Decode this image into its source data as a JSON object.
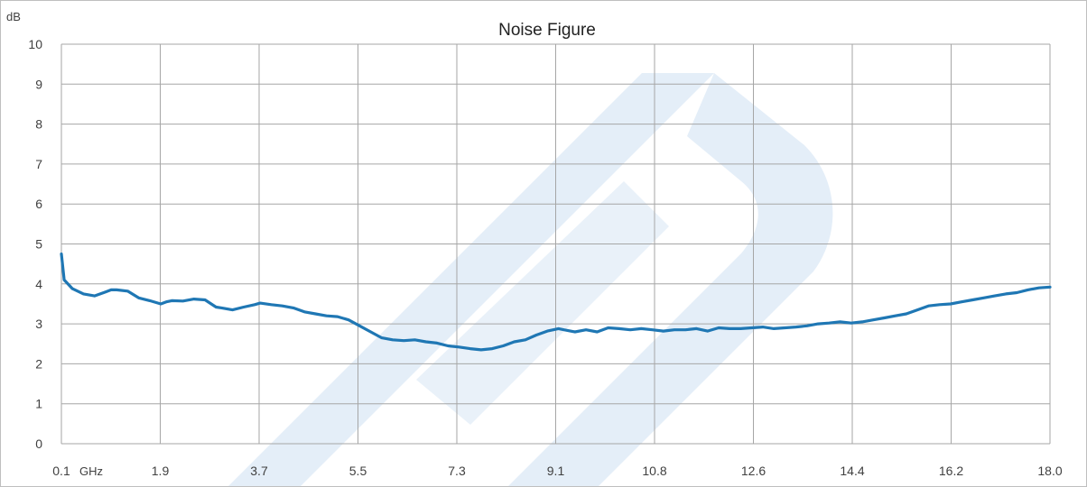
{
  "chart_data": {
    "type": "line",
    "title": "Noise Figure",
    "y_unit": "dB",
    "x_unit": "GHz",
    "xlim": [
      0.1,
      18.0
    ],
    "ylim": [
      0,
      10
    ],
    "x_ticks": [
      "0.1",
      "1.9",
      "3.7",
      "5.5",
      "7.3",
      "9.1",
      "10.8",
      "12.6",
      "14.4",
      "16.2",
      "18.0"
    ],
    "y_ticks": [
      "0",
      "1",
      "2",
      "3",
      "4",
      "5",
      "6",
      "7",
      "8",
      "9",
      "10"
    ],
    "grid": true,
    "line_color": "#1f77b4",
    "watermark_color": "#dbe8f5",
    "series": [
      {
        "x": [
          0.1,
          0.15,
          0.3,
          0.5,
          0.7,
          0.9,
          1.0,
          1.1,
          1.3,
          1.5,
          1.7,
          1.9,
          2.0,
          2.1,
          2.3,
          2.5,
          2.7,
          2.9,
          3.0,
          3.2,
          3.4,
          3.6,
          3.7,
          3.9,
          4.1,
          4.3,
          4.5,
          4.7,
          4.9,
          5.1,
          5.3,
          5.5,
          5.7,
          5.9,
          6.1,
          6.3,
          6.5,
          6.7,
          6.9,
          7.1,
          7.3,
          7.5,
          7.7,
          7.9,
          8.1,
          8.3,
          8.5,
          8.7,
          8.9,
          9.1,
          9.2,
          9.4,
          9.6,
          9.8,
          10.0,
          10.2,
          10.4,
          10.6,
          10.8,
          11.0,
          11.2,
          11.4,
          11.6,
          11.8,
          12.0,
          12.2,
          12.4,
          12.6,
          12.8,
          13.0,
          13.2,
          13.4,
          13.6,
          13.8,
          14.0,
          14.2,
          14.4,
          14.6,
          14.8,
          15.0,
          15.2,
          15.4,
          15.6,
          15.8,
          16.0,
          16.2,
          16.4,
          16.6,
          16.8,
          17.0,
          17.2,
          17.4,
          17.6,
          17.8,
          18.0
        ],
        "values": [
          4.75,
          4.1,
          3.88,
          3.75,
          3.7,
          3.8,
          3.85,
          3.85,
          3.82,
          3.65,
          3.58,
          3.5,
          3.55,
          3.58,
          3.57,
          3.62,
          3.6,
          3.42,
          3.4,
          3.35,
          3.42,
          3.48,
          3.52,
          3.48,
          3.45,
          3.4,
          3.3,
          3.25,
          3.2,
          3.18,
          3.1,
          2.95,
          2.8,
          2.65,
          2.6,
          2.58,
          2.6,
          2.55,
          2.52,
          2.45,
          2.42,
          2.38,
          2.35,
          2.38,
          2.45,
          2.55,
          2.6,
          2.72,
          2.82,
          2.88,
          2.85,
          2.8,
          2.85,
          2.8,
          2.9,
          2.88,
          2.85,
          2.88,
          2.85,
          2.82,
          2.85,
          2.85,
          2.88,
          2.82,
          2.9,
          2.88,
          2.88,
          2.9,
          2.92,
          2.88,
          2.9,
          2.92,
          2.95,
          3.0,
          3.02,
          3.05,
          3.02,
          3.05,
          3.1,
          3.15,
          3.2,
          3.25,
          3.35,
          3.45,
          3.48,
          3.5,
          3.55,
          3.6,
          3.65,
          3.7,
          3.75,
          3.78,
          3.85,
          3.9,
          3.92
        ]
      }
    ]
  }
}
